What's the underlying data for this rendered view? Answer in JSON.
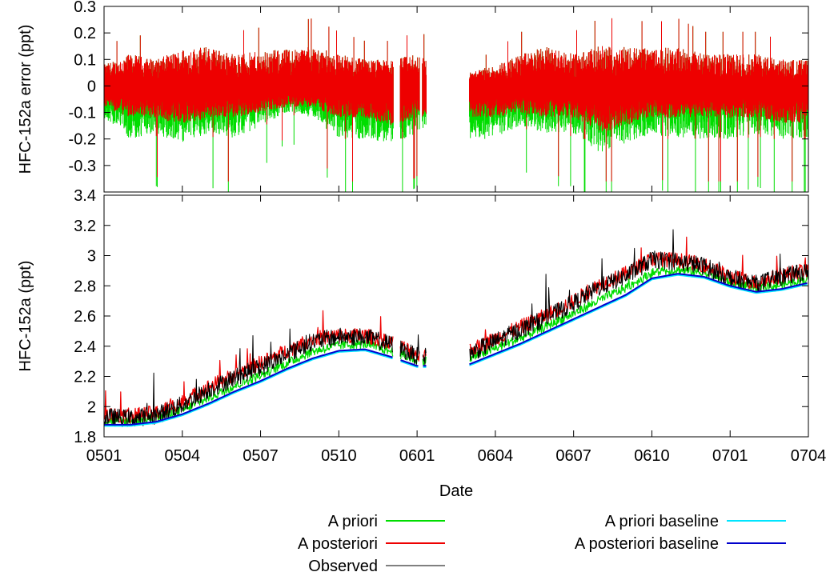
{
  "chart_data": [
    {
      "type": "line",
      "panel": "top",
      "ylabel": "HFC-152a error (ppt)",
      "ylim": [
        -0.4,
        0.3
      ],
      "yticks": [
        "0.3",
        "0.2",
        "0.1",
        "0",
        "-0.1",
        "-0.2",
        "-0.3"
      ],
      "grid": false,
      "x_range": [
        "2005-01",
        "2007-04"
      ],
      "data_gaps": [
        [
          "2005-12-04",
          "2005-12-12"
        ],
        [
          "2006-01-04",
          "2006-01-07"
        ],
        [
          "2006-01-12",
          "2006-03-01"
        ]
      ],
      "series": [
        {
          "name": "A priori",
          "color": "#00dd00",
          "envelope_min": [
            -0.12,
            -0.2,
            -0.18,
            -0.22,
            -0.18,
            -0.2,
            -0.15,
            -0.1,
            -0.12,
            -0.2,
            -0.2,
            -0.22,
            -0.18,
            -0.15,
            -0.2,
            -0.2,
            -0.15,
            -0.18,
            -0.18,
            -0.25,
            -0.22,
            -0.18,
            -0.2,
            -0.2,
            -0.2,
            -0.18,
            -0.2,
            -0.2
          ],
          "envelope_max": [
            0.08,
            0.12,
            0.1,
            0.14,
            0.15,
            0.12,
            0.13,
            0.14,
            0.15,
            0.12,
            0.1,
            0.1,
            0.12,
            0.1,
            0.05,
            0.08,
            0.12,
            0.15,
            0.12,
            0.15,
            0.15,
            0.14,
            0.15,
            0.12,
            0.12,
            0.12,
            0.1,
            0.1
          ]
        },
        {
          "name": "A posteriori",
          "color": "#ee0000",
          "envelope_min": [
            -0.08,
            -0.12,
            -0.12,
            -0.15,
            -0.12,
            -0.12,
            -0.1,
            -0.08,
            -0.08,
            -0.12,
            -0.12,
            -0.15,
            -0.12,
            -0.1,
            -0.12,
            -0.12,
            -0.1,
            -0.12,
            -0.12,
            -0.18,
            -0.15,
            -0.12,
            -0.12,
            -0.12,
            -0.12,
            -0.12,
            -0.14,
            -0.14
          ],
          "envelope_max": [
            0.08,
            0.12,
            0.1,
            0.14,
            0.15,
            0.12,
            0.13,
            0.14,
            0.15,
            0.12,
            0.1,
            0.1,
            0.12,
            0.1,
            0.05,
            0.08,
            0.12,
            0.15,
            0.12,
            0.15,
            0.15,
            0.14,
            0.15,
            0.12,
            0.12,
            0.12,
            0.1,
            0.1
          ]
        }
      ]
    },
    {
      "type": "line",
      "panel": "bottom",
      "ylabel": "HFC-152a (ppt)",
      "xlabel": "Date",
      "ylim": [
        1.8,
        3.4
      ],
      "yticks": [
        "3.4",
        "3.2",
        "3",
        "2.8",
        "2.6",
        "2.4",
        "2.2",
        "2",
        "1.8"
      ],
      "xticks": [
        "0501",
        "0504",
        "0507",
        "0510",
        "0601",
        "0604",
        "0607",
        "0610",
        "0701",
        "0704"
      ],
      "grid": false,
      "x": [
        "2005-01",
        "2005-02",
        "2005-03",
        "2005-04",
        "2005-05",
        "2005-06",
        "2005-07",
        "2005-08",
        "2005-09",
        "2005-10",
        "2005-11",
        "2005-12",
        "2006-01",
        "2006-02",
        "2006-03",
        "2006-04",
        "2006-05",
        "2006-06",
        "2006-07",
        "2006-08",
        "2006-09",
        "2006-10",
        "2006-11",
        "2006-12",
        "2007-01",
        "2007-02",
        "2007-03",
        "2007-04"
      ],
      "series": [
        {
          "name": "A priori baseline",
          "color": "#00e5ff",
          "values": [
            1.88,
            1.88,
            1.9,
            1.95,
            2.02,
            2.1,
            2.17,
            2.25,
            2.32,
            2.37,
            2.38,
            2.33,
            2.27,
            null,
            2.28,
            2.35,
            2.42,
            2.5,
            2.58,
            2.66,
            2.74,
            2.85,
            2.88,
            2.86,
            2.8,
            2.76,
            2.78,
            2.82
          ]
        },
        {
          "name": "A posteriori baseline",
          "color": "#0000cc",
          "values": [
            1.88,
            1.88,
            1.9,
            1.95,
            2.02,
            2.1,
            2.17,
            2.25,
            2.32,
            2.37,
            2.38,
            2.33,
            2.27,
            null,
            2.28,
            2.35,
            2.42,
            2.5,
            2.58,
            2.66,
            2.74,
            2.85,
            2.88,
            2.86,
            2.8,
            2.76,
            2.78,
            2.82
          ]
        },
        {
          "name": "Observed",
          "color": "#000000",
          "values": [
            1.92,
            1.91,
            1.93,
            2.0,
            2.1,
            2.18,
            2.25,
            2.33,
            2.42,
            2.45,
            2.45,
            2.4,
            2.32,
            null,
            2.34,
            2.42,
            2.5,
            2.58,
            2.67,
            2.78,
            2.85,
            2.96,
            2.95,
            2.92,
            2.84,
            2.8,
            2.85,
            2.88
          ]
        },
        {
          "name": "A posteriori",
          "color": "#ee0000",
          "values": [
            1.94,
            1.93,
            1.95,
            2.02,
            2.12,
            2.2,
            2.28,
            2.36,
            2.44,
            2.46,
            2.46,
            2.42,
            2.34,
            null,
            2.36,
            2.44,
            2.52,
            2.6,
            2.69,
            2.8,
            2.87,
            2.97,
            2.96,
            2.93,
            2.85,
            2.81,
            2.86,
            2.9
          ]
        },
        {
          "name": "A priori",
          "color": "#00dd00",
          "values": [
            1.9,
            1.9,
            1.92,
            1.97,
            2.05,
            2.13,
            2.2,
            2.28,
            2.36,
            2.4,
            2.41,
            2.36,
            2.3,
            null,
            2.31,
            2.38,
            2.45,
            2.53,
            2.61,
            2.7,
            2.78,
            2.88,
            2.9,
            2.88,
            2.82,
            2.78,
            2.8,
            2.84
          ]
        }
      ]
    }
  ],
  "legend": {
    "entries": [
      {
        "label": "A priori",
        "color": "#00dd00"
      },
      {
        "label": "A posteriori",
        "color": "#ee0000"
      },
      {
        "label": "Observed",
        "color": "#000000"
      },
      {
        "label": "A priori baseline",
        "color": "#00e5ff"
      },
      {
        "label": "A posteriori baseline",
        "color": "#0000cc"
      }
    ]
  }
}
